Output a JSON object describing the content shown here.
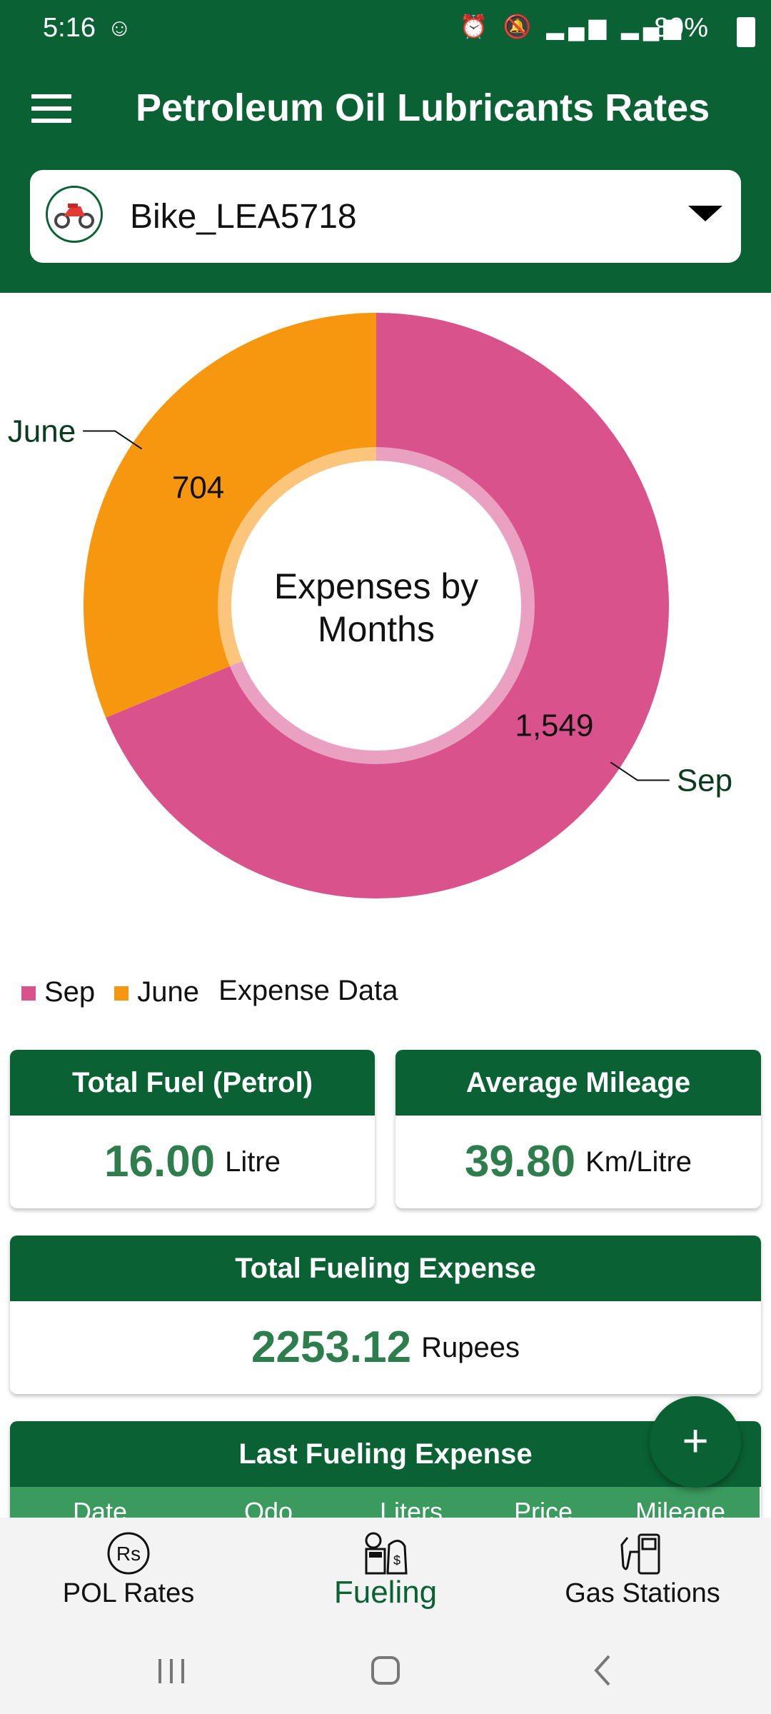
{
  "status_bar": {
    "time": "5:16",
    "battery_pct": "89%"
  },
  "header": {
    "title": "Petroleum Oil Lubricants Rates",
    "vehicle": "Bike_LEA5718"
  },
  "chart_data": {
    "type": "pie",
    "title": "Expenses by Months",
    "categories": [
      "Sep",
      "June"
    ],
    "values": [
      1549,
      704
    ],
    "value_labels": [
      "1,549",
      "704"
    ],
    "colors": [
      "#d9528c",
      "#f7960f"
    ],
    "legend_title": "Expense Data",
    "legend_position": "bottom-left",
    "donut": true
  },
  "cards": {
    "total_fuel": {
      "title": "Total Fuel (Petrol)",
      "value": "16.00",
      "unit": "Litre"
    },
    "average_mileage": {
      "title": "Average Mileage",
      "value": "39.80",
      "unit": "Km/Litre"
    },
    "total_expense": {
      "title": "Total Fueling Expense",
      "value": "2253.12",
      "unit": "Rupees"
    },
    "last_expense": {
      "title": "Last Fueling Expense",
      "columns": [
        "Date",
        "Odo",
        "Liters",
        "Price",
        "Mileage"
      ]
    }
  },
  "fab": {
    "label": "+"
  },
  "bottom_nav": {
    "items": [
      {
        "label": "POL Rates",
        "icon": "rupee-icon"
      },
      {
        "label": "Fueling",
        "icon": "fuel-expense-icon"
      },
      {
        "label": "Gas Stations",
        "icon": "fuel-pump-icon"
      }
    ],
    "active": "Fueling"
  },
  "colors": {
    "primary": "#0a6234",
    "accent_green": "#2e7d4d",
    "sep": "#d9528c",
    "june": "#f7960f"
  }
}
